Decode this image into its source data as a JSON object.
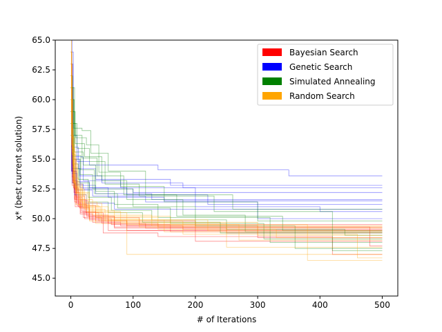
{
  "chart_data": {
    "type": "line",
    "title": "",
    "xlabel": "# of Iterations",
    "ylabel": "x* (best current solution)",
    "xlim": [
      -25,
      525
    ],
    "ylim": [
      43.5,
      65.0
    ],
    "xticks": [
      0,
      100,
      200,
      300,
      400,
      500
    ],
    "xtick_labels": [
      "0",
      "100",
      "200",
      "300",
      "400",
      "500"
    ],
    "yticks": [
      45.0,
      47.5,
      50.0,
      52.5,
      55.0,
      57.5,
      60.0,
      62.5,
      65.0
    ],
    "ytick_labels": [
      "45.0",
      "47.5",
      "50.0",
      "52.5",
      "55.0",
      "57.5",
      "60.0",
      "62.5",
      "65.0"
    ],
    "grid": false,
    "legend_position": "top-right",
    "legend": [
      {
        "name": "Bayesian Search",
        "color": "#ff0000"
      },
      {
        "name": "Genetic Search",
        "color": "#0000ff"
      },
      {
        "name": "Simulated Annealing",
        "color": "#008000"
      },
      {
        "name": "Random Search",
        "color": "#ffa500"
      }
    ],
    "series": [
      {
        "name": "Bayesian Search",
        "color": "#ff0000",
        "runs": [
          {
            "x": [
              0,
              2,
              5,
              12,
              25,
              60,
              140,
              500
            ],
            "y": [
              63,
              55,
              52.5,
              51.2,
              50.3,
              49.6,
              49.3,
              49.3
            ]
          },
          {
            "x": [
              0,
              3,
              8,
              18,
              40,
              90,
              500
            ],
            "y": [
              61,
              54,
              51.8,
              50.6,
              49.8,
              49.0,
              49.0
            ]
          },
          {
            "x": [
              0,
              1,
              4,
              10,
              28,
              70,
              250,
              500
            ],
            "y": [
              64,
              56,
              53,
              51.5,
              50.2,
              49.2,
              48.8,
              48.8
            ]
          },
          {
            "x": [
              0,
              2,
              6,
              15,
              35,
              80,
              180,
              500
            ],
            "y": [
              59,
              53.5,
              51.4,
              50.4,
              49.7,
              49.4,
              49.1,
              49.1
            ]
          },
          {
            "x": [
              0,
              2,
              5,
              14,
              30,
              65,
              160,
              300,
              500
            ],
            "y": [
              62,
              54.5,
              52.2,
              50.9,
              50.0,
              49.5,
              48.9,
              48.4,
              48.4
            ]
          },
          {
            "x": [
              0,
              3,
              7,
              20,
              50,
              120,
              500
            ],
            "y": [
              60,
              53,
              51.0,
              50.1,
              49.6,
              49.2,
              49.2
            ]
          },
          {
            "x": [
              0,
              2,
              9,
              25,
              70,
              480,
              500
            ],
            "y": [
              58,
              52.8,
              51.3,
              50.2,
              49.3,
              47.7,
              47.7
            ]
          },
          {
            "x": [
              0,
              1,
              6,
              16,
              45,
              200,
              500
            ],
            "y": [
              61,
              54,
              51.7,
              50.5,
              49.8,
              48.1,
              48.1
            ]
          },
          {
            "x": [
              0,
              2,
              8,
              22,
              60,
              500
            ],
            "y": [
              63,
              55,
              51.9,
              50.0,
              49.0,
              49.0
            ]
          },
          {
            "x": [
              0,
              4,
              12,
              30,
              90,
              300,
              500
            ],
            "y": [
              57,
              52.6,
              51.0,
              49.9,
              49.4,
              48.9,
              48.9
            ]
          },
          {
            "x": [
              0,
              3,
              10,
              40,
              110,
              400,
              500
            ],
            "y": [
              60,
              53.2,
              51.1,
              50.1,
              49.5,
              49.5,
              49.5
            ]
          },
          {
            "x": [
              0,
              2,
              6,
              24,
              52,
              140,
              420,
              500
            ],
            "y": [
              62,
              54,
              51.6,
              50.5,
              48.8,
              48.5,
              47.0,
              47.0
            ]
          }
        ]
      },
      {
        "name": "Genetic Search",
        "color": "#0000ff",
        "runs": [
          {
            "x": [
              0,
              2,
              10,
              30,
              140,
              350,
              500
            ],
            "y": [
              65,
              57,
              54.8,
              54.5,
              54.1,
              53.6,
              53.6
            ]
          },
          {
            "x": [
              0,
              3,
              12,
              40,
              160,
              500
            ],
            "y": [
              63,
              56,
              54.2,
              53.3,
              52.8,
              52.8
            ]
          },
          {
            "x": [
              0,
              1,
              5,
              20,
              100,
              500
            ],
            "y": [
              60,
              54,
              52.9,
              52.5,
              52.2,
              52.2
            ]
          },
          {
            "x": [
              0,
              2,
              8,
              30,
              90,
              220,
              500
            ],
            "y": [
              62,
              55,
              53.1,
              52.6,
              52.0,
              51.2,
              51.2
            ]
          },
          {
            "x": [
              0,
              3,
              15,
              60,
              150,
              500
            ],
            "y": [
              58,
              54.2,
              52.6,
              51.8,
              51.5,
              51.5
            ]
          },
          {
            "x": [
              0,
              2,
              10,
              35,
              120,
              300,
              500
            ],
            "y": [
              61,
              53.8,
              52.4,
              51.9,
              51.4,
              50.0,
              50.0
            ]
          },
          {
            "x": [
              0,
              4,
              20,
              80,
              200,
              400,
              500
            ],
            "y": [
              64,
              55.2,
              53.2,
              52.6,
              51.0,
              50.6,
              50.6
            ]
          },
          {
            "x": [
              0,
              2,
              6,
              25,
              70,
              500
            ],
            "y": [
              59,
              53.0,
              52.0,
              51.3,
              50.8,
              50.8
            ]
          },
          {
            "x": [
              0,
              3,
              9,
              40,
              130,
              500
            ],
            "y": [
              60,
              54.0,
              52.8,
              52.1,
              51.6,
              51.6
            ]
          },
          {
            "x": [
              0,
              2,
              14,
              50,
              180,
              500
            ],
            "y": [
              62,
              55.0,
              53.6,
              53.0,
              52.6,
              52.6
            ]
          }
        ]
      },
      {
        "name": "Simulated Annealing",
        "color": "#008000",
        "runs": [
          {
            "x": [
              0,
              5,
              18,
              32,
              60,
              120,
              260,
              500
            ],
            "y": [
              60,
              57.6,
              57.4,
              55.5,
              54.0,
              52.0,
              50.8,
              50.8
            ]
          },
          {
            "x": [
              0,
              8,
              25,
              45,
              80,
              150,
              300,
              500
            ],
            "y": [
              58,
              56.8,
              56.2,
              53.9,
              52.7,
              51.4,
              49.8,
              49.8
            ]
          },
          {
            "x": [
              0,
              6,
              20,
              40,
              70,
              140,
              320,
              500
            ],
            "y": [
              61,
              55.6,
              54.5,
              52.3,
              51.2,
              50.1,
              48.0,
              48.0
            ]
          },
          {
            "x": [
              0,
              4,
              15,
              35,
              100,
              200,
              360,
              500
            ],
            "y": [
              57,
              55.0,
              53.7,
              52.5,
              51.0,
              49.4,
              47.5,
              47.5
            ]
          },
          {
            "x": [
              0,
              7,
              22,
              50,
              90,
              180,
              280,
              500
            ],
            "y": [
              59,
              56.3,
              55.2,
              53.2,
              51.6,
              50.3,
              48.9,
              48.9
            ]
          },
          {
            "x": [
              0,
              3,
              12,
              28,
              65,
              130,
              250,
              440,
              500
            ],
            "y": [
              62,
              54.6,
              53.3,
              51.8,
              50.7,
              49.9,
              49.1,
              48.6,
              48.6
            ]
          },
          {
            "x": [
              0,
              10,
              30,
              55,
              110,
              230,
              420,
              500
            ],
            "y": [
              58,
              55.9,
              54.8,
              52.9,
              51.9,
              50.6,
              47.3,
              47.3
            ]
          },
          {
            "x": [
              0,
              5,
              16,
              38,
              75,
              160,
              310,
              500
            ],
            "y": [
              60,
              55.3,
              54.1,
              52.1,
              50.9,
              49.6,
              48.3,
              48.3
            ]
          },
          {
            "x": [
              0,
              6,
              18,
              42,
              85,
              170,
              340,
              500
            ],
            "y": [
              59,
              57.0,
              55.1,
              53.6,
              52.0,
              50.2,
              49.0,
              49.0
            ]
          },
          {
            "x": [
              0,
              4,
              14,
              30,
              60,
              115,
              240,
              500
            ],
            "y": [
              61,
              54.2,
              53.0,
              51.4,
              50.5,
              49.7,
              48.8,
              48.8
            ]
          }
        ]
      },
      {
        "name": "Random Search",
        "color": "#ffa500",
        "runs": [
          {
            "x": [
              0,
              1,
              3,
              8,
              30,
              90,
              500
            ],
            "y": [
              65,
              58,
              53,
              51.2,
              49.8,
              47.0,
              47.0
            ]
          },
          {
            "x": [
              0,
              2,
              5,
              15,
              40,
              250,
              500
            ],
            "y": [
              63,
              56,
              52.6,
              50.9,
              49.6,
              47.6,
              47.6
            ]
          },
          {
            "x": [
              0,
              1,
              4,
              12,
              35,
              130,
              500
            ],
            "y": [
              64,
              57.5,
              53.4,
              51.6,
              50.3,
              49.4,
              49.4
            ]
          },
          {
            "x": [
              0,
              2,
              7,
              20,
              60,
              200,
              500
            ],
            "y": [
              62,
              55.4,
              52.4,
              51.0,
              49.9,
              49.2,
              49.2
            ]
          },
          {
            "x": [
              0,
              3,
              10,
              25,
              80,
              300,
              500
            ],
            "y": [
              60,
              54.3,
              52.0,
              50.6,
              49.7,
              48.6,
              48.6
            ]
          },
          {
            "x": [
              0,
              1,
              6,
              18,
              50,
              160,
              380,
              500
            ],
            "y": [
              64,
              56.8,
              52.8,
              51.3,
              50.2,
              49.5,
              46.5,
              46.5
            ]
          },
          {
            "x": [
              0,
              2,
              9,
              30,
              70,
              220,
              500
            ],
            "y": [
              61,
              55.0,
              52.2,
              50.7,
              49.9,
              49.0,
              49.0
            ]
          },
          {
            "x": [
              0,
              1,
              4,
              14,
              45,
              110,
              500
            ],
            "y": [
              65,
              57.0,
              53.1,
              51.1,
              50.0,
              49.3,
              49.3
            ]
          },
          {
            "x": [
              0,
              2,
              8,
              22,
              55,
              180,
              460,
              500
            ],
            "y": [
              62,
              55.6,
              52.5,
              50.8,
              49.8,
              48.7,
              46.7,
              46.7
            ]
          },
          {
            "x": [
              0,
              3,
              11,
              28,
              90,
              270,
              500
            ],
            "y": [
              60,
              54.6,
              52.1,
              50.5,
              49.5,
              48.2,
              48.2
            ]
          },
          {
            "x": [
              0,
              1,
              5,
              16,
              42,
              140,
              330,
              500
            ],
            "y": [
              63,
              56.2,
              52.7,
              51.4,
              50.1,
              49.1,
              48.4,
              48.4
            ]
          },
          {
            "x": [
              0,
              2,
              6,
              19,
              48,
              150,
              500
            ],
            "y": [
              64,
              55.9,
              52.9,
              51.0,
              49.9,
              48.9,
              48.9
            ]
          }
        ]
      }
    ]
  }
}
